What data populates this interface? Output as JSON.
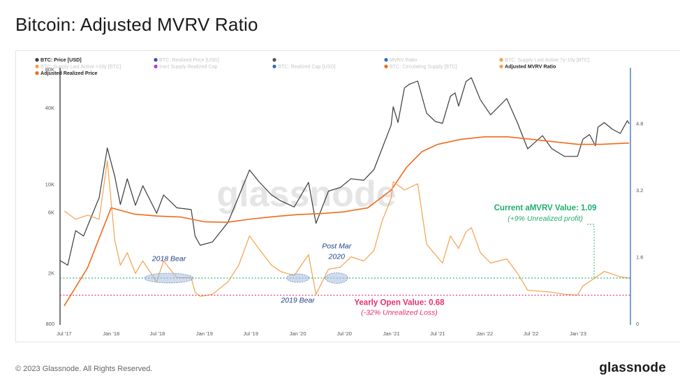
{
  "page": {
    "title": "Bitcoin: Adjusted MVRV Ratio",
    "copyright": "© 2023 Glassnode. All Rights Reserved.",
    "brand": "glassnode",
    "watermark": "glassnode"
  },
  "colors": {
    "price": "#3a3a3a",
    "adjusted_realized_price": "#f06a1c",
    "amvrv": "#f5a04a",
    "current_line": "#1fae6e",
    "yearly_open_line": "#e4326b",
    "bear_text": "#23408e",
    "bear_ellipse_fill": "#a9bde0",
    "right_axis": "#2f6fbd"
  },
  "chart_data": {
    "type": "line",
    "x_tick_labels": [
      "Jul '17",
      "Jan '18",
      "Jul '18",
      "Jan '19",
      "Jul '19",
      "Jan '20",
      "Jul '20",
      "Jan '21",
      "Jul '21",
      "Jan '22",
      "Jul '22",
      "Jan '23"
    ],
    "y_left": {
      "scale": "log",
      "tick_labels": [
        "80K",
        "40K",
        "10K",
        "6K",
        "2K",
        "800"
      ],
      "ticks": [
        80000,
        40000,
        10000,
        6000,
        2000,
        800
      ],
      "range": [
        800,
        80000
      ]
    },
    "y_right": {
      "scale": "linear",
      "tick_labels": [
        "4.8",
        "3.2",
        "1.6",
        "0"
      ],
      "ticks": [
        4.8,
        3.2,
        1.6,
        0
      ],
      "range": [
        0,
        6.1
      ]
    },
    "legend": [
      {
        "label": "BTC: Price [USD]",
        "color": "#3a3a3a",
        "active": true
      },
      {
        "label": "BTC: Realized Price [USD]",
        "color": "#2f4dbd",
        "active": false
      },
      {
        "label": "-",
        "color": "#555555",
        "active": false
      },
      {
        "label": "MVRV Ratio",
        "color": "#2f6fbd",
        "active": false
      },
      {
        "label": "BTC: Supply Last Active 7y-10y [BTC]",
        "color": "#f5a04a",
        "active": false
      },
      {
        "label": "BTC: Supply Last Active >10y [BTC]",
        "color": "#f5a04a",
        "active": false
      },
      {
        "label": "Inert Supply Realized Cap",
        "color": "#b23ad6",
        "active": false
      },
      {
        "label": "BTC: Realized Cap [USD]",
        "color": "#2f6fbd",
        "active": false
      },
      {
        "label": "BTC: Circulating Supply [BTC]",
        "color": "#f06a1c",
        "active": false
      },
      {
        "label": "Adjusted MVRV Ratio",
        "color": "#f5a04a",
        "active": true
      },
      {
        "label": "Adjusted Realized Price",
        "color": "#f06a1c",
        "active": true
      }
    ],
    "series": [
      {
        "name": "BTC: Price [USD]",
        "axis": "left",
        "x": [
          "2017-06-15",
          "2017-07-15",
          "2017-08-15",
          "2017-09-15",
          "2017-10-15",
          "2017-11-15",
          "2017-12-17",
          "2018-01-15",
          "2018-02-06",
          "2018-03-05",
          "2018-04-06",
          "2018-05-05",
          "2018-06-28",
          "2018-07-25",
          "2018-09-15",
          "2018-11-10",
          "2018-11-25",
          "2018-12-15",
          "2019-02-01",
          "2019-04-03",
          "2019-05-15",
          "2019-06-26",
          "2019-08-01",
          "2019-09-20",
          "2019-10-25",
          "2019-12-18",
          "2020-02-12",
          "2020-03-12",
          "2020-04-30",
          "2020-06-15",
          "2020-07-27",
          "2020-09-15",
          "2020-10-25",
          "2020-11-25",
          "2020-12-31",
          "2021-01-08",
          "2021-01-27",
          "2021-02-21",
          "2021-03-13",
          "2021-04-14",
          "2021-05-19",
          "2021-06-22",
          "2021-07-20",
          "2021-08-20",
          "2021-09-07",
          "2021-09-21",
          "2021-10-20",
          "2021-11-10",
          "2021-12-15",
          "2022-01-24",
          "2022-03-28",
          "2022-05-10",
          "2022-06-18",
          "2022-08-15",
          "2022-09-20",
          "2022-11-09",
          "2022-12-30",
          "2023-01-20",
          "2023-02-15",
          "2023-03-10",
          "2023-03-20",
          "2023-04-14",
          "2023-05-15",
          "2023-06-15",
          "2023-07-13",
          "2023-07-20"
        ],
        "y": [
          2500,
          2300,
          4300,
          3900,
          5500,
          7800,
          19200,
          11500,
          6900,
          11000,
          6800,
          9700,
          5900,
          8200,
          6500,
          6300,
          3900,
          3300,
          3500,
          5000,
          8000,
          12900,
          10500,
          8200,
          7400,
          6600,
          10300,
          4900,
          8800,
          9400,
          11000,
          10700,
          13000,
          18900,
          29000,
          40500,
          30500,
          57000,
          61000,
          64500,
          36000,
          31000,
          30000,
          49000,
          52000,
          41000,
          64000,
          68500,
          46000,
          35000,
          47000,
          30000,
          18900,
          24000,
          19000,
          16500,
          16500,
          22500,
          24500,
          20000,
          28000,
          30400,
          27000,
          25000,
          31500,
          29800
        ]
      },
      {
        "name": "Adjusted Realized Price",
        "axis": "left",
        "x": [
          "2017-07-01",
          "2017-10-01",
          "2018-01-01",
          "2018-04-01",
          "2018-07-01",
          "2018-10-01",
          "2019-01-01",
          "2019-04-01",
          "2019-07-01",
          "2019-10-01",
          "2020-01-01",
          "2020-04-01",
          "2020-07-01",
          "2020-10-01",
          "2021-01-01",
          "2021-03-01",
          "2021-05-01",
          "2021-07-01",
          "2021-10-01",
          "2022-01-01",
          "2022-04-01",
          "2022-07-01",
          "2022-10-01",
          "2023-01-01",
          "2023-04-01",
          "2023-07-20"
        ],
        "y": [
          1100,
          2200,
          6500,
          5800,
          5600,
          5500,
          5050,
          5000,
          5300,
          5550,
          5750,
          5850,
          6050,
          6500,
          9000,
          13500,
          18000,
          20500,
          22500,
          23500,
          23500,
          22500,
          21500,
          20500,
          20500,
          21000
        ]
      },
      {
        "name": "Adjusted MVRV Ratio",
        "axis": "right",
        "x": [
          "2017-07-01",
          "2017-08-15",
          "2017-10-01",
          "2017-11-15",
          "2017-12-17",
          "2018-01-15",
          "2018-02-06",
          "2018-03-05",
          "2018-04-06",
          "2018-05-05",
          "2018-06-28",
          "2018-07-25",
          "2018-09-15",
          "2018-11-10",
          "2018-11-25",
          "2018-12-15",
          "2019-02-01",
          "2019-04-03",
          "2019-05-15",
          "2019-06-26",
          "2019-08-01",
          "2019-09-20",
          "2019-10-25",
          "2019-12-18",
          "2020-02-12",
          "2020-03-12",
          "2020-04-30",
          "2020-06-15",
          "2020-07-27",
          "2020-09-15",
          "2020-10-25",
          "2020-11-25",
          "2020-12-31",
          "2021-01-08",
          "2021-02-21",
          "2021-04-14",
          "2021-05-19",
          "2021-07-20",
          "2021-08-20",
          "2021-09-21",
          "2021-10-20",
          "2021-11-10",
          "2021-12-15",
          "2022-01-24",
          "2022-03-28",
          "2022-05-10",
          "2022-06-18",
          "2022-09-20",
          "2022-11-09",
          "2022-12-30",
          "2023-01-20",
          "2023-03-10",
          "2023-04-14",
          "2023-06-15",
          "2023-07-20"
        ],
        "y": [
          2.7,
          2.5,
          2.6,
          2.5,
          3.9,
          2.0,
          1.4,
          1.7,
          1.2,
          1.5,
          1.0,
          1.5,
          1.1,
          1.1,
          0.75,
          0.65,
          0.7,
          1.0,
          1.4,
          2.1,
          1.8,
          1.4,
          1.25,
          1.15,
          1.65,
          0.7,
          1.3,
          1.35,
          1.6,
          1.5,
          1.75,
          2.45,
          3.0,
          3.4,
          3.2,
          3.35,
          1.9,
          1.45,
          2.1,
          1.8,
          2.2,
          2.3,
          1.7,
          1.45,
          1.55,
          1.2,
          0.8,
          0.75,
          0.7,
          0.68,
          0.9,
          1.1,
          1.25,
          1.12,
          1.09
        ]
      }
    ],
    "annotations": [
      {
        "text": "2018 Bear",
        "x": "2018-08-15",
        "y_right": 1.5
      },
      {
        "text": "2019 Bear",
        "x": "2020-01-01",
        "y_right": 0.5
      },
      {
        "text": "Post Mar",
        "x": "2020-06-01",
        "y_right": 1.8
      },
      {
        "text": "2020",
        "x": "2020-06-01",
        "y_right": 1.55
      },
      {
        "text": "Current aMVRV Value: 1.09",
        "sub": "(+9% Unrealized profit)",
        "y_right": 1.09
      },
      {
        "text": "Yearly Open Value: 0.68",
        "sub": "(-32% Unrealized Loss)",
        "y_right": 0.68
      }
    ],
    "grid": false,
    "legend_position": "top-left"
  }
}
